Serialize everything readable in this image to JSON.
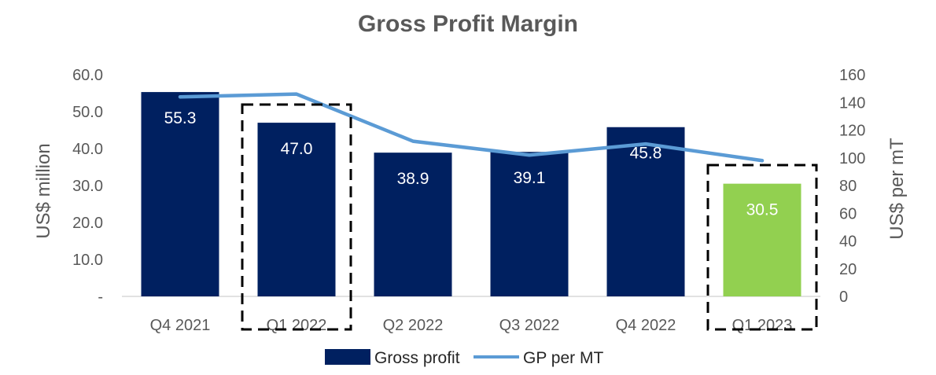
{
  "chart_data": {
    "type": "bar",
    "title": "Gross Profit Margin",
    "categories": [
      "Q4 2021",
      "Q1 2022",
      "Q2 2022",
      "Q3 2022",
      "Q4 2022",
      "Q1 2023"
    ],
    "series": [
      {
        "name": "Gross profit",
        "type": "bar",
        "axis": "left",
        "values": [
          55.3,
          47.0,
          38.9,
          39.1,
          45.8,
          30.5
        ],
        "data_labels": [
          "55.3",
          "47.0",
          "38.9",
          "39.1",
          "45.8",
          "30.5"
        ],
        "color": "#002060",
        "highlight_color": "#92D050",
        "highlight_index": 5
      },
      {
        "name": "GP per MT",
        "type": "line",
        "axis": "right",
        "values": [
          144,
          146,
          112,
          102,
          110,
          98
        ],
        "color": "#5B9BD5"
      }
    ],
    "ylabel": "US$ million",
    "y2label": "US$ per mT",
    "ylim": [
      0,
      60
    ],
    "y2lim": [
      0,
      160
    ],
    "yticks": [
      "-",
      "10.0",
      "20.0",
      "30.0",
      "40.0",
      "50.0",
      "60.0"
    ],
    "y2ticks": [
      "0",
      "20",
      "40",
      "60",
      "80",
      "100",
      "120",
      "140",
      "160"
    ],
    "grid": false,
    "legend_position": "bottom",
    "highlighted_categories": [
      "Q1 2022",
      "Q1 2023"
    ]
  }
}
